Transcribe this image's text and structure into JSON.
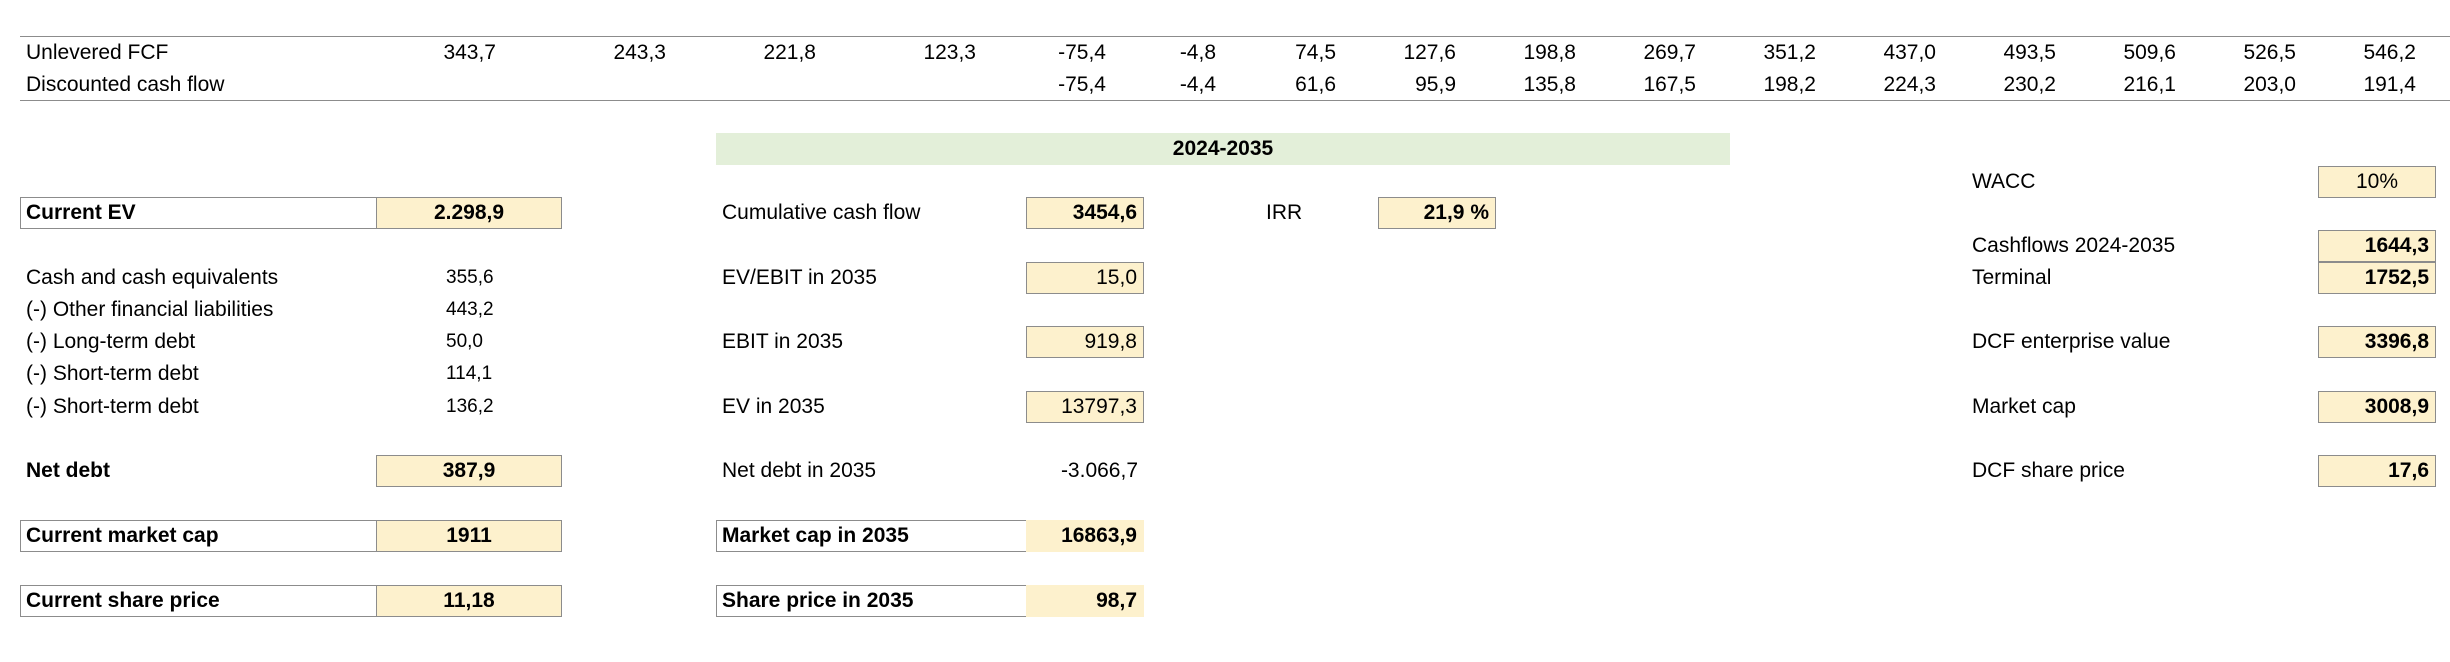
{
  "cashflow_table": {
    "rows": [
      {
        "label": "Unlevered FCF",
        "values": [
          "343,7",
          "243,3",
          "221,8",
          "123,3",
          "-75,4",
          "-4,8",
          "74,5",
          "127,6",
          "198,8",
          "269,7",
          "351,2",
          "437,0",
          "493,5",
          "509,6",
          "526,5",
          "546,2"
        ]
      },
      {
        "label": "Discounted cash flow",
        "values": [
          "",
          "",
          "",
          "",
          "-75,4",
          "-4,4",
          "61,6",
          "95,9",
          "135,8",
          "167,5",
          "198,2",
          "224,3",
          "230,2",
          "216,1",
          "203,0",
          "191,4"
        ]
      }
    ]
  },
  "left_panel": {
    "current_ev": {
      "label": "Current EV",
      "value": "2.298,9"
    },
    "items": [
      {
        "label": "Cash and cash equivalents",
        "value": "355,6"
      },
      {
        "label": "(-) Other financial liabilities",
        "value": "443,2"
      },
      {
        "label": "(-) Long-term debt",
        "value": "50,0"
      },
      {
        "label": "(-) Short-term debt",
        "value": "114,1"
      },
      {
        "label": "(-) Short-term debt",
        "value": "136,2"
      }
    ],
    "net_debt": {
      "label": "Net debt",
      "value": "387,9"
    },
    "market_cap": {
      "label": "Current market cap",
      "value": "1911"
    },
    "share_price": {
      "label": "Current share price",
      "value": "11,18"
    }
  },
  "middle_panel": {
    "period_header": "2024-2035",
    "cumulative_cash_flow": {
      "label": "Cumulative cash flow",
      "value": "3454,6"
    },
    "irr": {
      "label": "IRR",
      "value": "21,9 %"
    },
    "ev_ebit": {
      "label": "EV/EBIT in 2035",
      "value": "15,0"
    },
    "ebit": {
      "label": "EBIT in 2035",
      "value": "919,8"
    },
    "ev": {
      "label": "EV in 2035",
      "value": "13797,3"
    },
    "net_debt": {
      "label": "Net debt in 2035",
      "value": "-3.066,7"
    },
    "market_cap": {
      "label": "Market cap in 2035",
      "value": "16863,9"
    },
    "share_price": {
      "label": "Share price in 2035",
      "value": "98,7"
    }
  },
  "right_panel": {
    "wacc": {
      "label": "WACC",
      "value": "10%"
    },
    "cashflows": {
      "label": "Cashflows 2024-2035",
      "value": "1644,3"
    },
    "terminal": {
      "label": "Terminal",
      "value": "1752,5"
    },
    "dcf_ev": {
      "label": "DCF enterprise value",
      "value": "3396,8"
    },
    "market_cap": {
      "label": "Market cap",
      "value": "3008,9"
    },
    "dcf_share_price": {
      "label": "DCF share price",
      "value": "17,6"
    }
  },
  "colors": {
    "input_fill": "#fdf1cd",
    "header_band": "#e3efd9",
    "border": "#8c8c8c"
  }
}
